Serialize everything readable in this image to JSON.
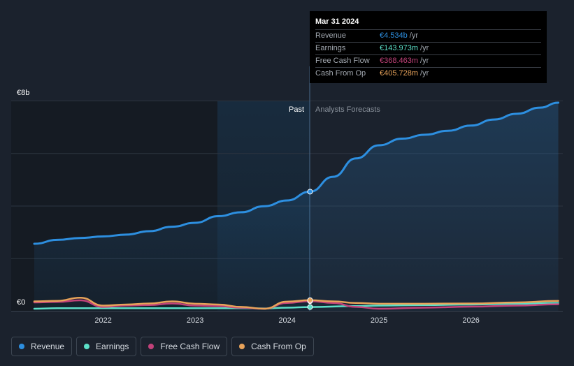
{
  "chart_data": {
    "type": "line",
    "y_axis": {
      "top_label": "€8b",
      "bottom_label": "€0",
      "ylim": [
        0,
        8
      ]
    },
    "x_ticks": [
      "2022",
      "2023",
      "2024",
      "2025",
      "2026"
    ],
    "x_range": [
      2021.25,
      2026.95
    ],
    "divider_x": 2024.25,
    "past_label": "Past",
    "forecast_label": "Analysts Forecasts",
    "series": [
      {
        "name": "Revenue",
        "color": "#2d8fe0",
        "points": [
          [
            2021.25,
            2.55
          ],
          [
            2021.5,
            2.7
          ],
          [
            2021.75,
            2.77
          ],
          [
            2022.0,
            2.83
          ],
          [
            2022.25,
            2.9
          ],
          [
            2022.5,
            3.03
          ],
          [
            2022.75,
            3.2
          ],
          [
            2023.0,
            3.35
          ],
          [
            2023.25,
            3.6
          ],
          [
            2023.5,
            3.75
          ],
          [
            2023.75,
            3.98
          ],
          [
            2024.0,
            4.2
          ],
          [
            2024.25,
            4.534
          ],
          [
            2024.5,
            5.1
          ],
          [
            2024.75,
            5.8
          ],
          [
            2025.0,
            6.3
          ],
          [
            2025.25,
            6.55
          ],
          [
            2025.5,
            6.7
          ],
          [
            2025.75,
            6.85
          ],
          [
            2026.0,
            7.05
          ],
          [
            2026.25,
            7.28
          ],
          [
            2026.5,
            7.5
          ],
          [
            2026.75,
            7.73
          ],
          [
            2026.95,
            7.92
          ]
        ]
      },
      {
        "name": "Earnings",
        "color": "#5ce0c8",
        "points": [
          [
            2021.25,
            0.08
          ],
          [
            2021.5,
            0.1
          ],
          [
            2021.75,
            0.1
          ],
          [
            2022.0,
            0.1
          ],
          [
            2022.5,
            0.1
          ],
          [
            2023.0,
            0.1
          ],
          [
            2023.5,
            0.1
          ],
          [
            2023.75,
            0.09
          ],
          [
            2024.0,
            0.12
          ],
          [
            2024.25,
            0.144
          ],
          [
            2024.75,
            0.18
          ],
          [
            2025.0,
            0.2
          ],
          [
            2025.5,
            0.22
          ],
          [
            2026.0,
            0.24
          ],
          [
            2026.5,
            0.27
          ],
          [
            2026.95,
            0.3
          ]
        ]
      },
      {
        "name": "Free Cash Flow",
        "color": "#c2427a",
        "points": [
          [
            2021.25,
            0.32
          ],
          [
            2021.5,
            0.34
          ],
          [
            2021.75,
            0.4
          ],
          [
            2022.0,
            0.15
          ],
          [
            2022.25,
            0.2
          ],
          [
            2022.5,
            0.22
          ],
          [
            2022.75,
            0.28
          ],
          [
            2023.0,
            0.2
          ],
          [
            2023.25,
            0.18
          ],
          [
            2023.5,
            0.12
          ],
          [
            2023.75,
            0.08
          ],
          [
            2024.0,
            0.3
          ],
          [
            2024.25,
            0.368
          ],
          [
            2024.5,
            0.3
          ],
          [
            2024.75,
            0.15
          ],
          [
            2025.0,
            0.08
          ],
          [
            2025.5,
            0.12
          ],
          [
            2026.0,
            0.16
          ],
          [
            2026.5,
            0.2
          ],
          [
            2026.95,
            0.25
          ]
        ]
      },
      {
        "name": "Cash From Op",
        "color": "#e8a35a",
        "points": [
          [
            2021.25,
            0.36
          ],
          [
            2021.5,
            0.38
          ],
          [
            2021.75,
            0.5
          ],
          [
            2022.0,
            0.2
          ],
          [
            2022.25,
            0.24
          ],
          [
            2022.5,
            0.28
          ],
          [
            2022.75,
            0.36
          ],
          [
            2023.0,
            0.27
          ],
          [
            2023.25,
            0.24
          ],
          [
            2023.5,
            0.15
          ],
          [
            2023.75,
            0.08
          ],
          [
            2024.0,
            0.35
          ],
          [
            2024.25,
            0.406
          ],
          [
            2024.5,
            0.36
          ],
          [
            2024.75,
            0.3
          ],
          [
            2025.0,
            0.27
          ],
          [
            2025.5,
            0.27
          ],
          [
            2026.0,
            0.28
          ],
          [
            2026.5,
            0.32
          ],
          [
            2026.95,
            0.38
          ]
        ]
      }
    ],
    "highlight_x": 2024.25
  },
  "tooltip": {
    "date": "Mar 31 2024",
    "rows": [
      {
        "label": "Revenue",
        "value": "€4.534b",
        "unit": "/yr",
        "color": "#2d8fe0"
      },
      {
        "label": "Earnings",
        "value": "€143.973m",
        "unit": "/yr",
        "color": "#5ce0c8"
      },
      {
        "label": "Free Cash Flow",
        "value": "€368.463m",
        "unit": "/yr",
        "color": "#c2427a"
      },
      {
        "label": "Cash From Op",
        "value": "€405.728m",
        "unit": "/yr",
        "color": "#e8a35a"
      }
    ]
  },
  "legend": [
    {
      "label": "Revenue",
      "color": "#2d8fe0"
    },
    {
      "label": "Earnings",
      "color": "#5ce0c8"
    },
    {
      "label": "Free Cash Flow",
      "color": "#c2427a"
    },
    {
      "label": "Cash From Op",
      "color": "#e8a35a"
    }
  ]
}
